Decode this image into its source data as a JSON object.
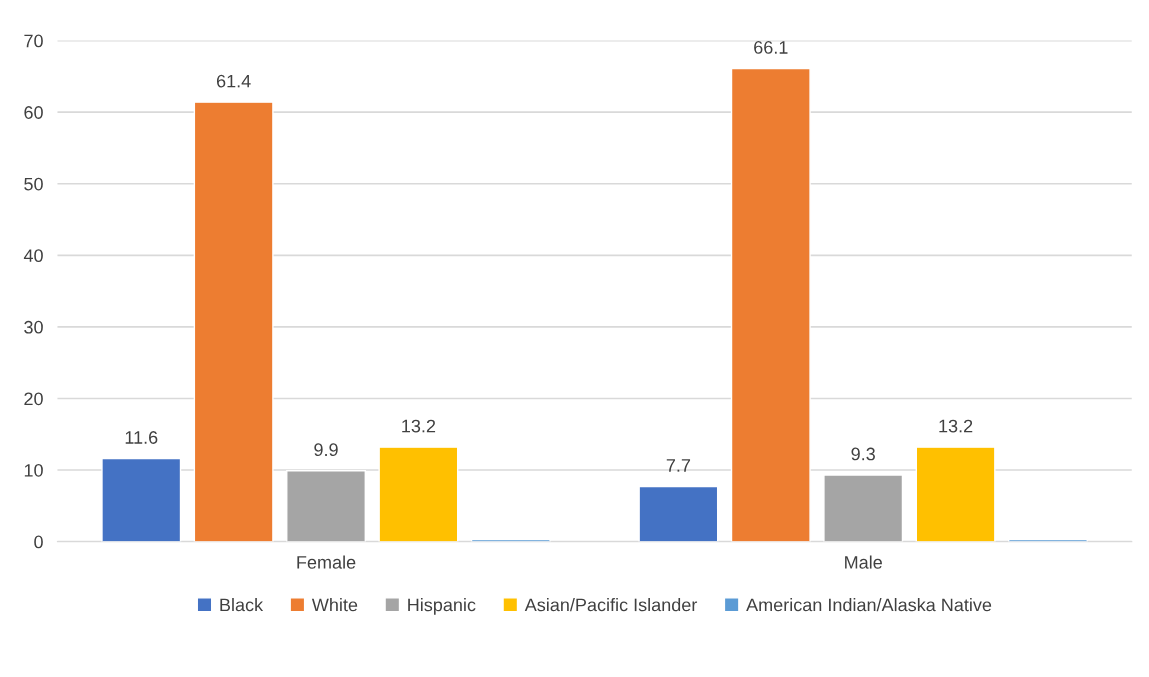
{
  "chart_data": {
    "type": "bar",
    "categories": [
      "Female",
      "Male"
    ],
    "series": [
      {
        "name": "Black",
        "color": "#4472c4",
        "values": [
          11.6,
          7.7
        ],
        "value_labels": [
          "11.6",
          "7.7"
        ]
      },
      {
        "name": "White",
        "color": "#ed7d31",
        "values": [
          61.4,
          66.1
        ],
        "value_labels": [
          "61.4",
          "66.1"
        ]
      },
      {
        "name": "Hispanic",
        "color": "#a5a5a5",
        "values": [
          9.9,
          9.3
        ],
        "value_labels": [
          "9.9",
          "9.3"
        ]
      },
      {
        "name": "Asian/Pacific Islander",
        "color": "#ffc000",
        "values": [
          13.2,
          13.2
        ],
        "value_labels": [
          "13.2",
          "13.2"
        ]
      },
      {
        "name": "American Indian/Alaska Native",
        "color": "#5b9bd5",
        "values": [
          0.3,
          0.3
        ],
        "value_labels": [
          null,
          null
        ]
      }
    ],
    "ylim": [
      0,
      70
    ],
    "yticks": [
      0,
      10,
      20,
      30,
      40,
      50,
      60,
      70
    ],
    "grid": "y",
    "legend": "bottom"
  }
}
